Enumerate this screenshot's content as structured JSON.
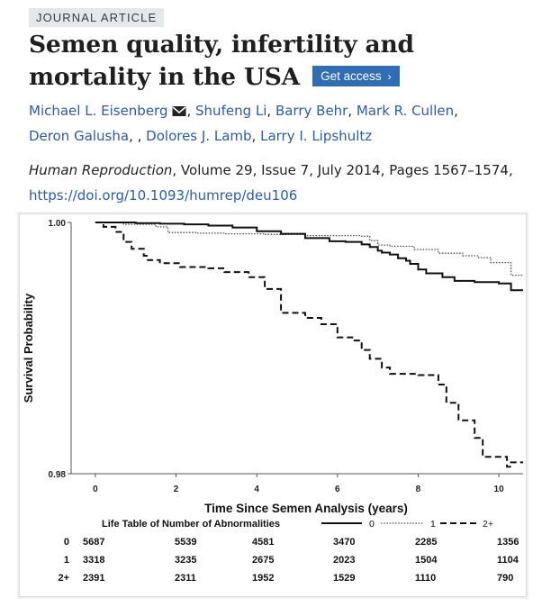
{
  "article": {
    "badge": "JOURNAL ARTICLE",
    "title": "Semen quality, infertility and mortality in the USA",
    "access_button": "Get access",
    "authors": [
      {
        "name": "Michael L. Eisenberg",
        "sep": "",
        "email": true
      },
      {
        "name": "Shufeng Li",
        "sep": ", "
      },
      {
        "name": "Barry Behr",
        "sep": ", "
      },
      {
        "name": "Mark R. Cullen",
        "sep": ", "
      },
      {
        "name": "Deron Galusha",
        "sep": ","
      },
      {
        "name": "Dolores J. Lamb",
        "sep": ", "
      },
      {
        "name": "Larry I. Lipshultz",
        "sep": ", "
      }
    ],
    "journal": "Human Reproduction",
    "citation_details": ", Volume 29, Issue 7, July 2014, Pages 1567–1574,",
    "doi": "https://doi.org/10.1093/humrep/deu106"
  },
  "colors": {
    "link": "#2a5db0",
    "button": "#2f6db5",
    "badge_bg": "#e4e7ec"
  },
  "chart_data": {
    "type": "line",
    "xlabel": "Time Since Semen Analysis (years)",
    "ylabel": "Survival Probability",
    "xlim": [
      -0.6,
      10.6
    ],
    "ylim": [
      0.98,
      1.0
    ],
    "ytick_labels": [
      "1.00",
      "0.98"
    ],
    "yticks": [
      1.0,
      0.98
    ],
    "xticks": [
      0,
      2,
      4,
      6,
      8,
      10
    ],
    "legend_title": "Life Table of Number of Abnormalities",
    "series": [
      {
        "name": "0",
        "style": "solid",
        "points": [
          [
            0,
            1.0
          ],
          [
            1,
            0.99995
          ],
          [
            1.6,
            0.9999
          ],
          [
            2.2,
            0.99985
          ],
          [
            2.8,
            0.99975
          ],
          [
            3.4,
            0.9996
          ],
          [
            4,
            0.9993
          ],
          [
            4.6,
            0.9991
          ],
          [
            5.2,
            0.99875
          ],
          [
            5.8,
            0.9985
          ],
          [
            6.2,
            0.99845
          ],
          [
            6.6,
            0.99825
          ],
          [
            6.8,
            0.99805
          ],
          [
            7.0,
            0.99775
          ],
          [
            7.1,
            0.9976
          ],
          [
            7.3,
            0.99745
          ],
          [
            7.5,
            0.99715
          ],
          [
            7.7,
            0.99695
          ],
          [
            7.8,
            0.9967
          ],
          [
            8.0,
            0.99625
          ],
          [
            8.2,
            0.99595
          ],
          [
            8.6,
            0.99565
          ],
          [
            8.9,
            0.99535
          ],
          [
            9.4,
            0.99525
          ],
          [
            10.0,
            0.99515
          ],
          [
            10.3,
            0.9946
          ],
          [
            10.6,
            0.9946
          ]
        ]
      },
      {
        "name": "1",
        "style": "dotted",
        "points": [
          [
            0,
            1.0
          ],
          [
            0.7,
            0.99985
          ],
          [
            1.5,
            0.99965
          ],
          [
            1.8,
            0.9992
          ],
          [
            2.5,
            0.99915
          ],
          [
            3.2,
            0.9991
          ],
          [
            4.2,
            0.99905
          ],
          [
            5.2,
            0.99895
          ],
          [
            6.6,
            0.9989
          ],
          [
            6.8,
            0.99855
          ],
          [
            7.0,
            0.9982
          ],
          [
            7.3,
            0.9981
          ],
          [
            7.9,
            0.99785
          ],
          [
            8.5,
            0.99755
          ],
          [
            9.1,
            0.99735
          ],
          [
            9.5,
            0.9972
          ],
          [
            9.8,
            0.9968
          ],
          [
            10.3,
            0.9958
          ],
          [
            10.6,
            0.9958
          ]
        ]
      },
      {
        "name": "2+",
        "style": "dashed",
        "points": [
          [
            0,
            1.0
          ],
          [
            0.2,
            0.99965
          ],
          [
            0.5,
            0.99925
          ],
          [
            0.7,
            0.99845
          ],
          [
            0.9,
            0.9979
          ],
          [
            1.2,
            0.99735
          ],
          [
            1.3,
            0.997
          ],
          [
            1.6,
            0.99675
          ],
          [
            2.1,
            0.99645
          ],
          [
            2.8,
            0.99635
          ],
          [
            3.2,
            0.99605
          ],
          [
            3.8,
            0.99565
          ],
          [
            4.2,
            0.9947
          ],
          [
            4.6,
            0.9928
          ],
          [
            5.2,
            0.9924
          ],
          [
            5.6,
            0.9919
          ],
          [
            6.0,
            0.99085
          ],
          [
            6.4,
            0.9906
          ],
          [
            6.6,
            0.98985
          ],
          [
            6.8,
            0.98915
          ],
          [
            7.1,
            0.98845
          ],
          [
            7.3,
            0.98795
          ],
          [
            8.0,
            0.98785
          ],
          [
            8.5,
            0.9871
          ],
          [
            8.7,
            0.98565
          ],
          [
            9.0,
            0.98425
          ],
          [
            9.4,
            0.98285
          ],
          [
            9.6,
            0.98135
          ],
          [
            10.2,
            0.98055
          ],
          [
            10.3,
            0.9809
          ],
          [
            10.6,
            0.9809
          ]
        ]
      }
    ],
    "life_table": {
      "times": [
        0,
        2,
        4,
        6,
        8,
        10
      ],
      "rows": [
        {
          "label": "0",
          "values": [
            5687,
            5539,
            4581,
            3470,
            2285,
            1356
          ]
        },
        {
          "label": "1",
          "values": [
            3318,
            3235,
            2675,
            2023,
            1504,
            1104
          ]
        },
        {
          "label": "2+",
          "values": [
            2391,
            2311,
            1952,
            1529,
            1110,
            790
          ]
        }
      ]
    }
  }
}
